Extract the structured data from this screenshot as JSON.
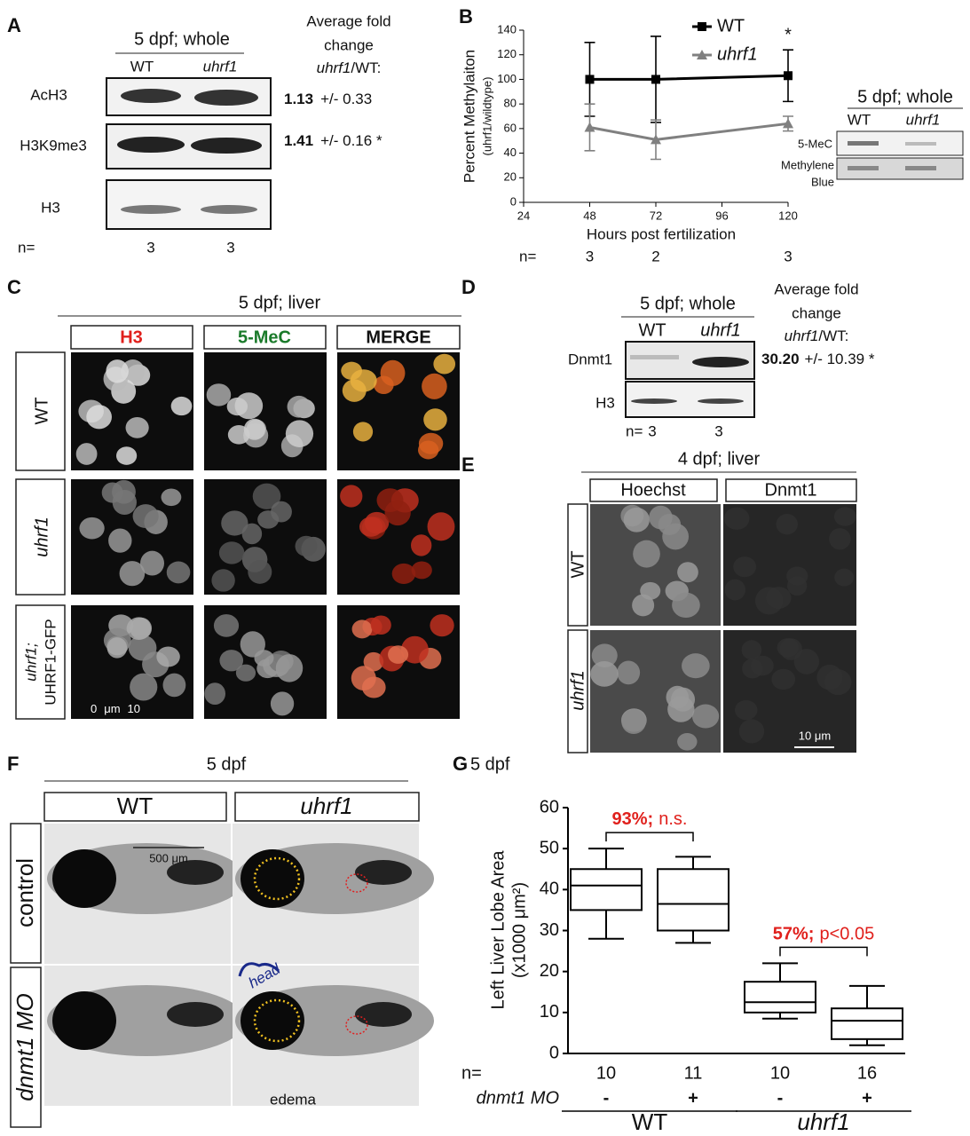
{
  "panels": {
    "A": {
      "letter": "A",
      "title": "5 dpf; whole",
      "columns": [
        "WT",
        "uhrf1"
      ],
      "fold_heading": [
        "Average fold",
        "change"
      ],
      "fold_ratio": [
        "uhrf1",
        "/WT:"
      ],
      "rows": [
        {
          "label": "AcH3",
          "fold": "1.13",
          "error": "+/- 0.33"
        },
        {
          "label": "H3K9me3",
          "fold": "1.41",
          "error": "+/- 0.16 *"
        },
        {
          "label": "H3"
        }
      ],
      "n_label": "n=",
      "n": [
        3,
        3
      ]
    },
    "B_inset": {
      "title": "5 dpf; whole",
      "columns": [
        "WT",
        "uhrf1"
      ],
      "rows": [
        [
          "5-MeC"
        ],
        [
          "Methylene",
          "Blue"
        ]
      ]
    },
    "C": {
      "letter": "C",
      "title": "5 dpf; liver",
      "columns": [
        "H3",
        "5-MeC",
        "MERGE"
      ],
      "rows": [
        [
          "WT"
        ],
        [
          "uhrf1"
        ],
        [
          "uhrf1;",
          "UHRF1-GFP"
        ]
      ],
      "scale_bar": [
        "0",
        "μm",
        "10"
      ]
    },
    "D": {
      "letter": "D",
      "title": "5 dpf; whole",
      "columns": [
        "WT",
        "uhrf1"
      ],
      "fold_heading": [
        "Average fold",
        "change"
      ],
      "fold_ratio": [
        "uhrf1",
        "/WT:"
      ],
      "rows": [
        {
          "label": "Dnmt1",
          "fold": "30.20",
          "error": "+/- 10.39 *"
        },
        {
          "label": "H3"
        }
      ],
      "n_label": "n=",
      "n": [
        3,
        3
      ]
    },
    "E": {
      "letter": "E",
      "title": "4 dpf; liver",
      "columns": [
        "Hoechst",
        "Dnmt1"
      ],
      "rows": [
        "WT",
        "uhrf1"
      ],
      "scale_bar": "10 μm"
    },
    "F": {
      "letter": "F",
      "title": "5 dpf",
      "columns": [
        "WT",
        "uhrf1"
      ],
      "rows": [
        "control",
        "dnmt1 MO"
      ],
      "scale_bar": "500 μm",
      "head": "head",
      "edema": "edema"
    }
  },
  "chart_data": [
    {
      "type": "line",
      "panel": "B",
      "x": [
        48,
        72,
        120
      ],
      "xlim": [
        24,
        120
      ],
      "xticks": [
        24,
        48,
        72,
        96,
        120
      ],
      "ylim": [
        0,
        140
      ],
      "yticks": [
        0,
        20,
        40,
        60,
        80,
        100,
        120,
        140
      ],
      "xlabel": "Hours post fertilization",
      "ylabel": [
        "Percent Methylaiton",
        "(uhrf1/wildtype)"
      ],
      "series": [
        {
          "name": "WT",
          "color": "#000000",
          "marker": "square",
          "values": [
            100,
            100,
            103
          ],
          "errors": [
            30,
            35,
            21
          ]
        },
        {
          "name": "uhrf1",
          "color": "#808080",
          "marker": "triangle",
          "values": [
            61,
            51,
            64
          ],
          "errors": [
            19,
            16,
            6
          ]
        }
      ],
      "annotation": "*",
      "n_label": "n=",
      "n": [
        3,
        2,
        3
      ]
    },
    {
      "type": "box",
      "panel": "G",
      "title": "5 dpf",
      "ylim": [
        0,
        60
      ],
      "yticks": [
        0,
        10,
        20,
        30,
        40,
        50,
        60
      ],
      "ylabel": [
        "Left Liver Lobe Area",
        "(x1000 μm²)"
      ],
      "color": "#000000",
      "min": [
        28,
        27,
        8.5,
        2
      ],
      "q1": [
        35,
        30,
        10,
        3.5
      ],
      "median": [
        41,
        36.5,
        12.5,
        8
      ],
      "q3": [
        45,
        45,
        17.5,
        11
      ],
      "max": [
        50,
        48,
        22,
        16.5
      ],
      "n_label": "n=",
      "n": [
        10,
        11,
        10,
        16
      ],
      "mo_label": "dnmt1 MO",
      "mo": [
        "-",
        "+",
        "-",
        "+"
      ],
      "groups": [
        "WT",
        "uhrf1"
      ],
      "comparisons": [
        {
          "percent": "93%;",
          "result": "n.s."
        },
        {
          "percent": "57%;",
          "result": "p<0.05"
        }
      ],
      "comparison_color": "#e0201c"
    }
  ]
}
